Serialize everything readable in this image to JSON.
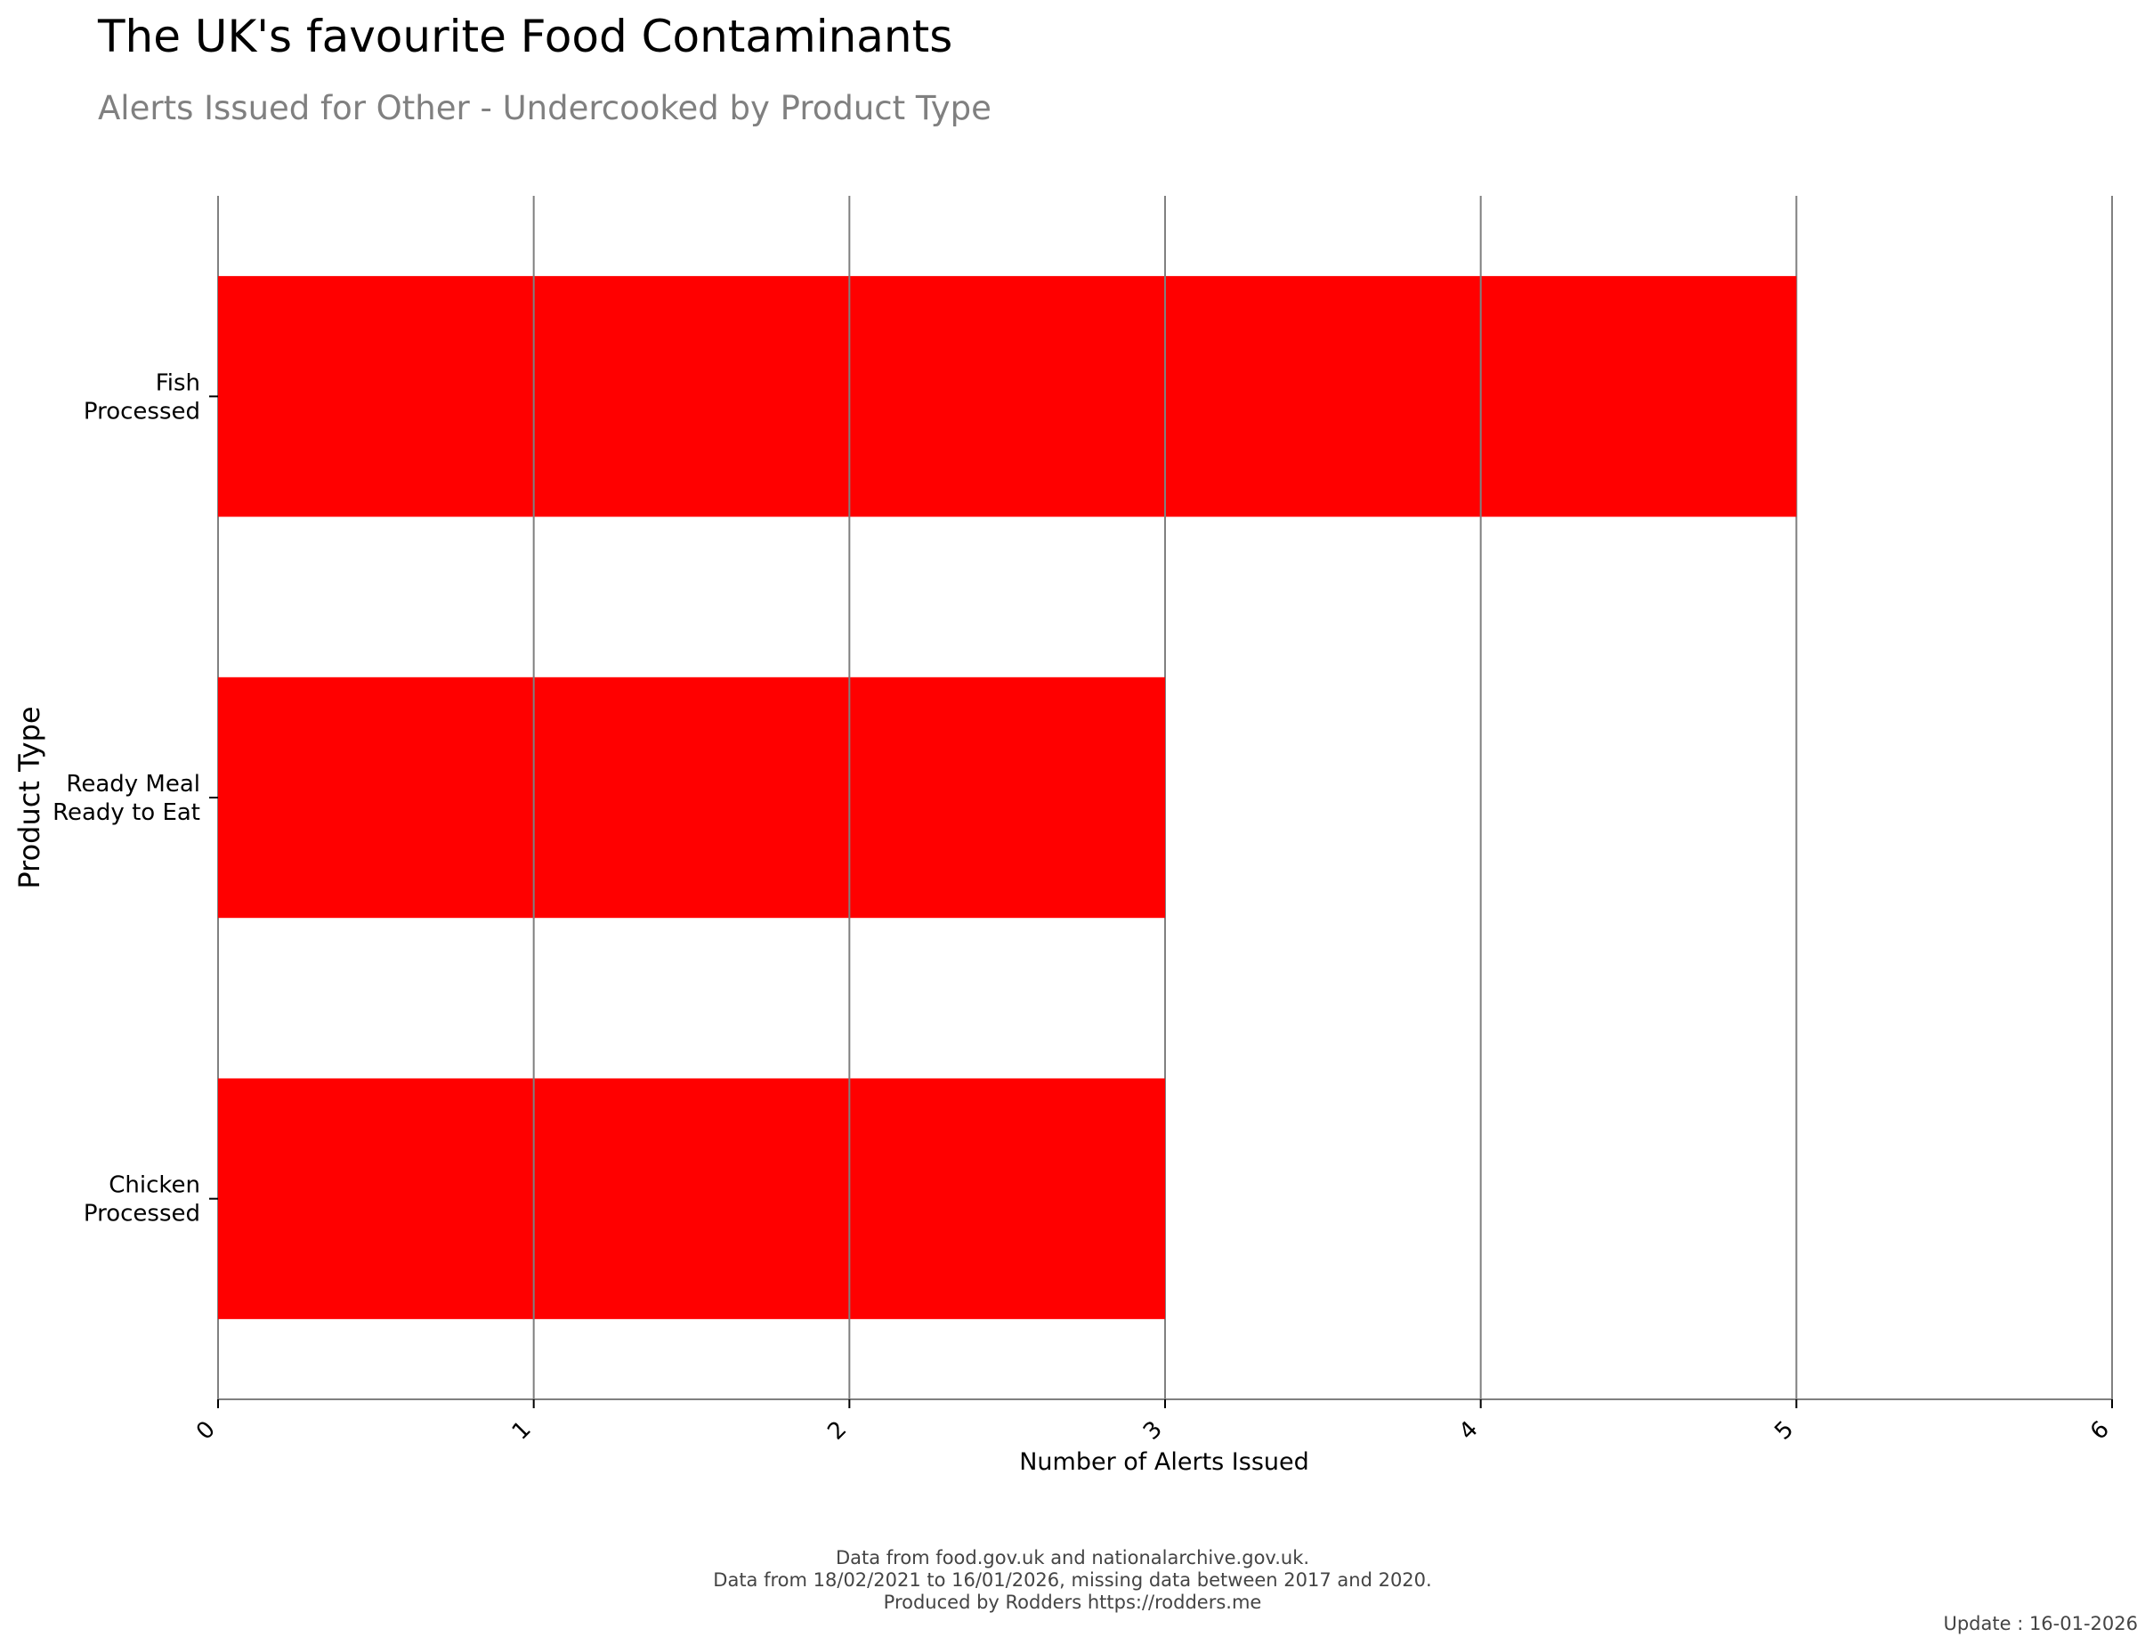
{
  "header": {
    "title": "The UK's favourite Food Contaminants",
    "subtitle": "Alerts Issued for Other - Undercooked by Product Type"
  },
  "chart_data": {
    "type": "bar",
    "orientation": "horizontal",
    "categories": [
      [
        "Fish",
        "Processed"
      ],
      [
        "Ready Meal",
        "Ready to Eat"
      ],
      [
        "Chicken",
        "Processed"
      ]
    ],
    "values": [
      5,
      3,
      3
    ],
    "xlabel": "Number of Alerts Issued",
    "ylabel": "Product Type",
    "xlim": [
      0,
      6
    ],
    "xticks": [
      "0",
      "1",
      "2",
      "3",
      "4",
      "5",
      "6"
    ],
    "grid": true,
    "bar_color": "#ff0000",
    "grid_color": "#808080"
  },
  "footer": {
    "line1": "Data from food.gov.uk and nationalarchive.gov.uk.",
    "line2": "Data from 18/02/2021 to 16/01/2026, missing data between 2017 and 2020.",
    "line3": "Produced by Rodders https://rodders.me",
    "update": "Update : 16-01-2026"
  }
}
